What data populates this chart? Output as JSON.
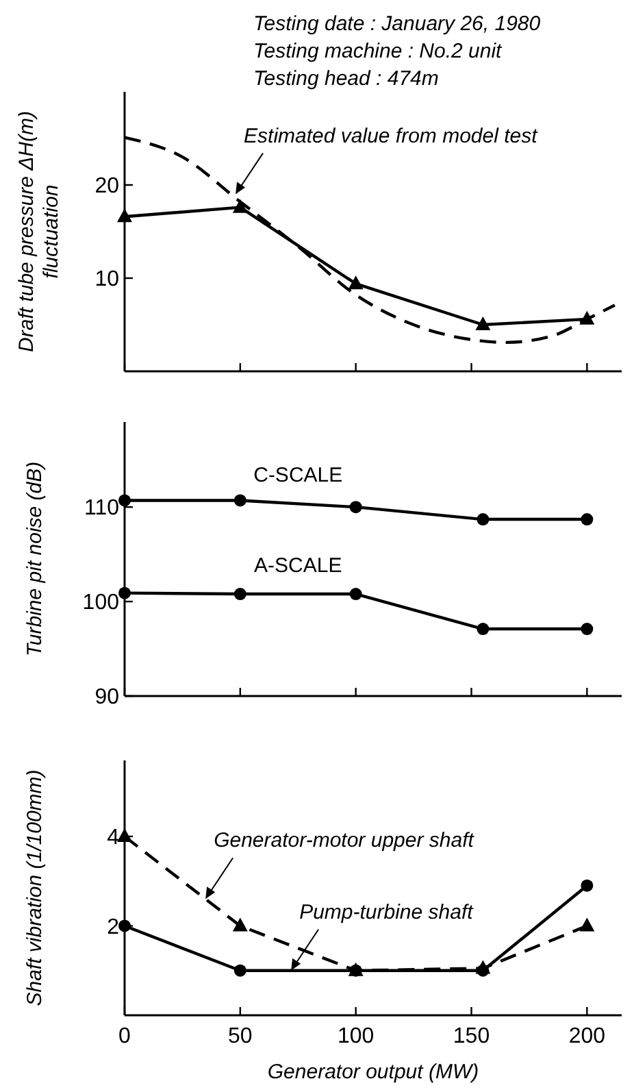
{
  "chart_data": [
    {
      "type": "line",
      "ylabel": "Draft tube pressure  ΔH(m)\nfluctuation",
      "xlim": [
        0,
        215
      ],
      "xticks": [
        0,
        50,
        100,
        150,
        200
      ],
      "ylim": [
        0,
        30
      ],
      "yticks": [
        10,
        20
      ],
      "tick_labels": "y",
      "grid": false,
      "annotations": [
        "Testing date : January 26, 1980",
        "Testing machine : No.2 unit",
        "Testing head : 474m",
        {
          "text": "Estimated value from model test",
          "x": 48,
          "y": 19
        }
      ],
      "series": [
        {
          "color": "#000000",
          "marker": "triangle",
          "line_style": "solid",
          "x": [
            0,
            50,
            100,
            155,
            200
          ],
          "values": [
            16.6,
            17.6,
            9.4,
            5.0,
            5.6
          ]
        },
        {
          "color": "#000000",
          "marker": "none",
          "line_style": "dashed",
          "x": [
            0,
            25,
            50,
            75,
            100,
            125,
            150,
            165,
            185,
            200,
            212
          ],
          "values": [
            25.1,
            23,
            18.2,
            13.4,
            8.2,
            5.0,
            3.4,
            3.1,
            3.8,
            5.6,
            7.1
          ]
        }
      ]
    },
    {
      "type": "line",
      "ylabel": "Turbine pit noise  (dB)",
      "xlim": [
        0,
        215
      ],
      "xticks": [
        0,
        50,
        100,
        150,
        200
      ],
      "ylim": [
        90,
        119
      ],
      "yticks": [
        90,
        100,
        110
      ],
      "tick_labels": "y",
      "grid": false,
      "series": [
        {
          "name": "C-SCALE",
          "color": "#000000",
          "marker": "circle",
          "line_style": "solid",
          "x": [
            0,
            50,
            100,
            155,
            200
          ],
          "values": [
            110.7,
            110.7,
            110,
            108.7,
            108.7
          ]
        },
        {
          "name": "A-SCALE",
          "color": "#000000",
          "marker": "circle",
          "line_style": "solid",
          "x": [
            0,
            50,
            100,
            155,
            200
          ],
          "values": [
            100.9,
            100.8,
            100.8,
            97.1,
            97.1
          ]
        }
      ]
    },
    {
      "type": "line",
      "ylabel": "Shaft vibration  (1/100mm)",
      "xlabel": "Generator output (MW)",
      "xlim": [
        0,
        215
      ],
      "xticks": [
        0,
        50,
        100,
        150,
        200
      ],
      "ylim": [
        0,
        5.7
      ],
      "yticks": [
        2,
        4
      ],
      "grid": false,
      "annotations": [
        {
          "text": "Generator-motor upper shaft",
          "x": 35,
          "y": 2.6
        },
        {
          "text": "Pump-turbine shaft",
          "x": 72,
          "y": 1.0
        }
      ],
      "series": [
        {
          "color": "#000000",
          "marker": "triangle",
          "line_style": "dashed",
          "x": [
            0,
            50,
            100,
            155,
            200
          ],
          "values": [
            4,
            2,
            1.0,
            1.05,
            2
          ]
        },
        {
          "color": "#000000",
          "marker": "circle",
          "line_style": "solid",
          "x": [
            0,
            50,
            100,
            155,
            200
          ],
          "values": [
            2,
            1.0,
            1.0,
            1.0,
            2.9
          ]
        }
      ]
    }
  ]
}
